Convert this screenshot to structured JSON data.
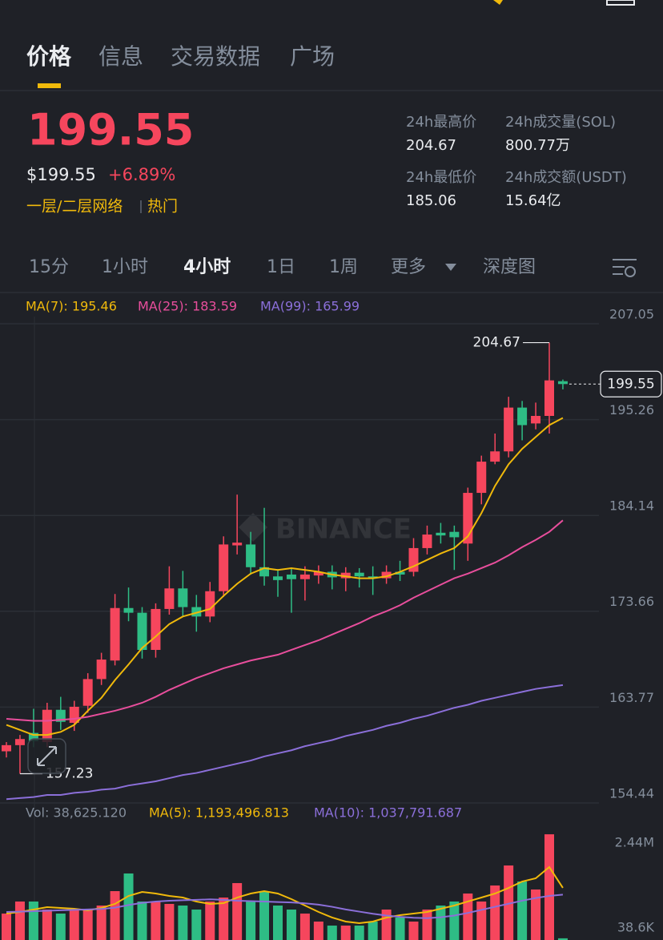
{
  "tabs": [
    "价格",
    "信息",
    "交易数据",
    "广场"
  ],
  "price": "199.55",
  "price_usd": "$199.55",
  "change": "+6.89%",
  "tags": [
    "一层/二层网络",
    "热门"
  ],
  "stats": [
    {
      "label": "24h最高价",
      "value": "204.67"
    },
    {
      "label": "24h成交量(SOL)",
      "value": "800.77万"
    },
    {
      "label": "24h最低价",
      "value": "185.06"
    },
    {
      "label": "24h成交额(USDT)",
      "value": "15.64亿"
    }
  ],
  "intervals": [
    "15分",
    "1小时",
    "4小时",
    "1日",
    "1周",
    "更多",
    "深度图"
  ],
  "watermark": "BINANCE",
  "chart_data": [
    {
      "type": "candlestick",
      "log_scale": true,
      "grid": true,
      "up_color": "#f6465d",
      "down_color": "#2ebd85",
      "open": [
        159.4,
        160.0,
        161.2,
        160.3,
        163.5,
        162.2,
        163.9,
        166.6,
        168.5,
        174.0,
        173.5,
        169.6,
        173.9,
        176.1,
        174.1,
        173.1,
        175.8,
        180.8,
        180.9,
        178.4,
        177.4,
        177.6,
        177.1,
        177.5,
        177.9,
        177.2,
        177.8,
        177.4,
        177.2,
        177.9,
        177.9,
        180.5,
        182.2,
        182.3,
        181.0,
        186.7,
        190.3,
        191.5,
        196.7,
        194.8,
        195.7,
        199.9
      ],
      "high": [
        160.3,
        161.0,
        163.6,
        164.2,
        164.8,
        164.4,
        167.2,
        169.3,
        175.5,
        176.2,
        174.1,
        174.5,
        178.5,
        178.0,
        175.4,
        176.8,
        181.8,
        186.5,
        182.3,
        185.0,
        178.2,
        178.3,
        178.5,
        178.6,
        178.6,
        178.4,
        178.3,
        178.5,
        178.6,
        179.1,
        181.6,
        183.0,
        183.3,
        183.0,
        187.3,
        191.0,
        193.6,
        198.0,
        197.5,
        197.3,
        204.67,
        200.1
      ],
      "low": [
        158.8,
        157.23,
        159.8,
        159.8,
        161.5,
        161.4,
        163.2,
        166.0,
        168.0,
        172.6,
        168.7,
        168.8,
        173.3,
        173.1,
        171.5,
        172.5,
        175.2,
        179.8,
        177.6,
        176.4,
        175.2,
        173.5,
        174.8,
        176.6,
        176.0,
        175.8,
        176.2,
        175.4,
        176.6,
        176.9,
        177.4,
        179.8,
        181.0,
        178.1,
        179.1,
        185.4,
        190.0,
        190.8,
        192.8,
        194.1,
        193.6,
        198.9
      ],
      "close": [
        160.0,
        160.6,
        160.4,
        163.5,
        162.3,
        163.8,
        166.6,
        168.6,
        174.0,
        173.5,
        169.6,
        173.9,
        176.1,
        174.1,
        173.1,
        175.8,
        180.9,
        181.1,
        178.4,
        177.4,
        177.0,
        177.1,
        177.6,
        177.9,
        177.3,
        177.8,
        177.4,
        177.2,
        177.9,
        177.6,
        180.5,
        182.0,
        181.9,
        181.7,
        186.7,
        190.3,
        191.5,
        196.7,
        194.6,
        195.7,
        200.0,
        199.55
      ],
      "series": [
        {
          "name": "MA(7): 195.46",
          "color": "#f0b90b",
          "values": [
            162.0,
            161.5,
            161.0,
            161.0,
            161.3,
            162.0,
            163.4,
            164.7,
            166.5,
            168.1,
            169.8,
            171.0,
            172.3,
            173.1,
            173.5,
            173.9,
            175.3,
            176.6,
            177.7,
            178.3,
            178.1,
            178.3,
            178.1,
            177.9,
            177.6,
            177.4,
            177.2,
            177.2,
            177.4,
            177.9,
            178.5,
            179.2,
            179.9,
            180.5,
            181.8,
            184.4,
            187.5,
            190.0,
            191.8,
            193.2,
            194.6,
            195.46
          ]
        },
        {
          "name": "MA(25): 183.59",
          "color": "#e84e9c",
          "values": [
            162.6,
            162.5,
            162.4,
            162.4,
            162.5,
            162.6,
            162.8,
            163.1,
            163.4,
            163.77,
            164.2,
            164.8,
            165.5,
            166.1,
            166.7,
            167.2,
            167.7,
            168.1,
            168.5,
            168.8,
            169.1,
            169.6,
            170.1,
            170.6,
            171.2,
            171.8,
            172.4,
            173.1,
            173.66,
            174.3,
            175.1,
            175.8,
            176.5,
            177.2,
            177.7,
            178.3,
            178.9,
            179.7,
            180.6,
            181.4,
            182.3,
            183.59
          ]
        },
        {
          "name": "MA(99): 165.99",
          "color": "#8b6fd9",
          "values": [
            154.8,
            154.9,
            155.0,
            155.2,
            155.2,
            155.4,
            155.5,
            155.7,
            155.8,
            156.1,
            156.3,
            156.5,
            156.8,
            157.1,
            157.3,
            157.6,
            157.9,
            158.2,
            158.5,
            158.9,
            159.2,
            159.5,
            159.9,
            160.2,
            160.5,
            160.9,
            161.2,
            161.5,
            161.9,
            162.2,
            162.6,
            162.9,
            163.3,
            163.7,
            164.0,
            164.4,
            164.7,
            165.0,
            165.3,
            165.6,
            165.8,
            165.99
          ]
        }
      ],
      "ylim": [
        154.44,
        207.05
      ],
      "yticks": [
        207.05,
        195.26,
        184.14,
        173.66,
        163.77,
        154.44
      ],
      "annotations": {
        "high": 204.67,
        "low": 157.23,
        "last": 199.55
      }
    },
    {
      "type": "bar",
      "legend": "Vol: 38,625.120",
      "values": [
        605000,
        881000,
        881000,
        697000,
        605000,
        697000,
        697000,
        789000,
        1119000,
        1523000,
        881000,
        881000,
        826000,
        789000,
        697000,
        881000,
        972000,
        1303000,
        881000,
        1119000,
        789000,
        697000,
        605000,
        422000,
        330000,
        330000,
        330000,
        422000,
        697000,
        514000,
        422000,
        697000,
        789000,
        881000,
        1064000,
        881000,
        1248000,
        1706000,
        1339000,
        1156000,
        2420000,
        38625.12
      ],
      "series": [
        {
          "name": "MA(5): 1,193,496.813",
          "color": "#f0b90b",
          "values": [
            605000,
            642000,
            697000,
            752000,
            734000,
            715000,
            679000,
            734000,
            826000,
            1009000,
            1101000,
            1064000,
            1009000,
            972000,
            881000,
            826000,
            844000,
            972000,
            1064000,
            1119000,
            1064000,
            936000,
            789000,
            642000,
            514000,
            422000,
            385000,
            422000,
            514000,
            569000,
            605000,
            642000,
            715000,
            789000,
            881000,
            972000,
            1064000,
            1192000,
            1339000,
            1413000,
            1669000,
            1193496.813
          ]
        },
        {
          "name": "MA(10): 1,037,791.687",
          "color": "#8b6fd9",
          "values": [
            642000,
            650000,
            660000,
            670000,
            680000,
            690000,
            700000,
            710000,
            740000,
            800000,
            850000,
            880000,
            900000,
            910000,
            920000,
            930000,
            920000,
            900000,
            890000,
            880000,
            870000,
            860000,
            840000,
            810000,
            760000,
            700000,
            650000,
            600000,
            560000,
            530000,
            510000,
            500000,
            520000,
            560000,
            620000,
            690000,
            760000,
            830000,
            900000,
            960000,
            1010000,
            1037791.687
          ]
        }
      ],
      "ylim": [
        0,
        2440000
      ],
      "yticks": [
        {
          "value": 2440000,
          "label": "2.44M"
        },
        {
          "value": 38600,
          "label": "38.6K"
        }
      ]
    }
  ]
}
